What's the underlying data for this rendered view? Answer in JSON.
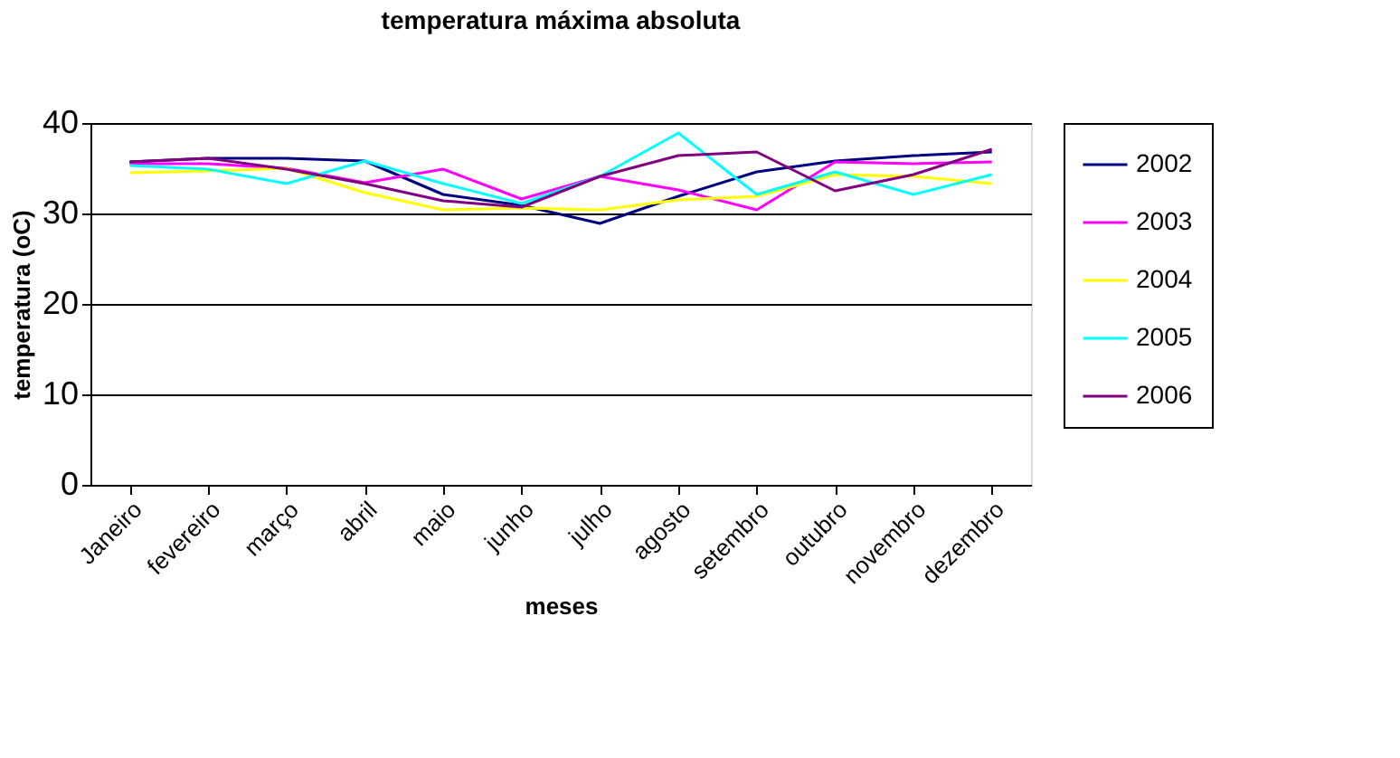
{
  "chart_data": {
    "type": "line",
    "title": "temperatura máxima absoluta",
    "xlabel": "meses",
    "ylabel": "temperatura (oC)",
    "categories": [
      "Janeiro",
      "fevereiro",
      "março",
      "abril",
      "maio",
      "junho",
      "julho",
      "agosto",
      "setembro",
      "outubro",
      "novembro",
      "dezembro"
    ],
    "series": [
      {
        "name": "2002",
        "color": "#000080",
        "values": [
          35.7,
          36.1,
          36.1,
          35.8,
          32.1,
          30.9,
          28.9,
          31.9,
          34.6,
          35.8,
          36.4,
          36.8
        ]
      },
      {
        "name": "2003",
        "color": "#ff00ff",
        "values": [
          35.5,
          35.5,
          35.0,
          33.4,
          34.9,
          31.6,
          34.1,
          32.6,
          30.4,
          35.7,
          35.5,
          35.7
        ]
      },
      {
        "name": "2004",
        "color": "#ffff00",
        "values": [
          34.5,
          34.7,
          35.0,
          32.3,
          30.4,
          30.6,
          30.4,
          31.5,
          31.9,
          34.3,
          34.1,
          33.3
        ]
      },
      {
        "name": "2005",
        "color": "#00ffff",
        "values": [
          35.3,
          34.9,
          33.3,
          35.8,
          33.3,
          31.1,
          34.1,
          38.9,
          32.1,
          34.6,
          32.1,
          34.3
        ]
      },
      {
        "name": "2006",
        "color": "#800080",
        "values": [
          35.7,
          36.1,
          34.9,
          33.3,
          31.4,
          30.7,
          34.1,
          36.4,
          36.8,
          32.5,
          34.3,
          37.1
        ]
      }
    ],
    "ylim": [
      0,
      40
    ],
    "yticks": [
      0,
      10,
      20,
      30,
      40
    ],
    "grid": "y",
    "legend": "right",
    "marker": "none",
    "line_style": "solid"
  }
}
